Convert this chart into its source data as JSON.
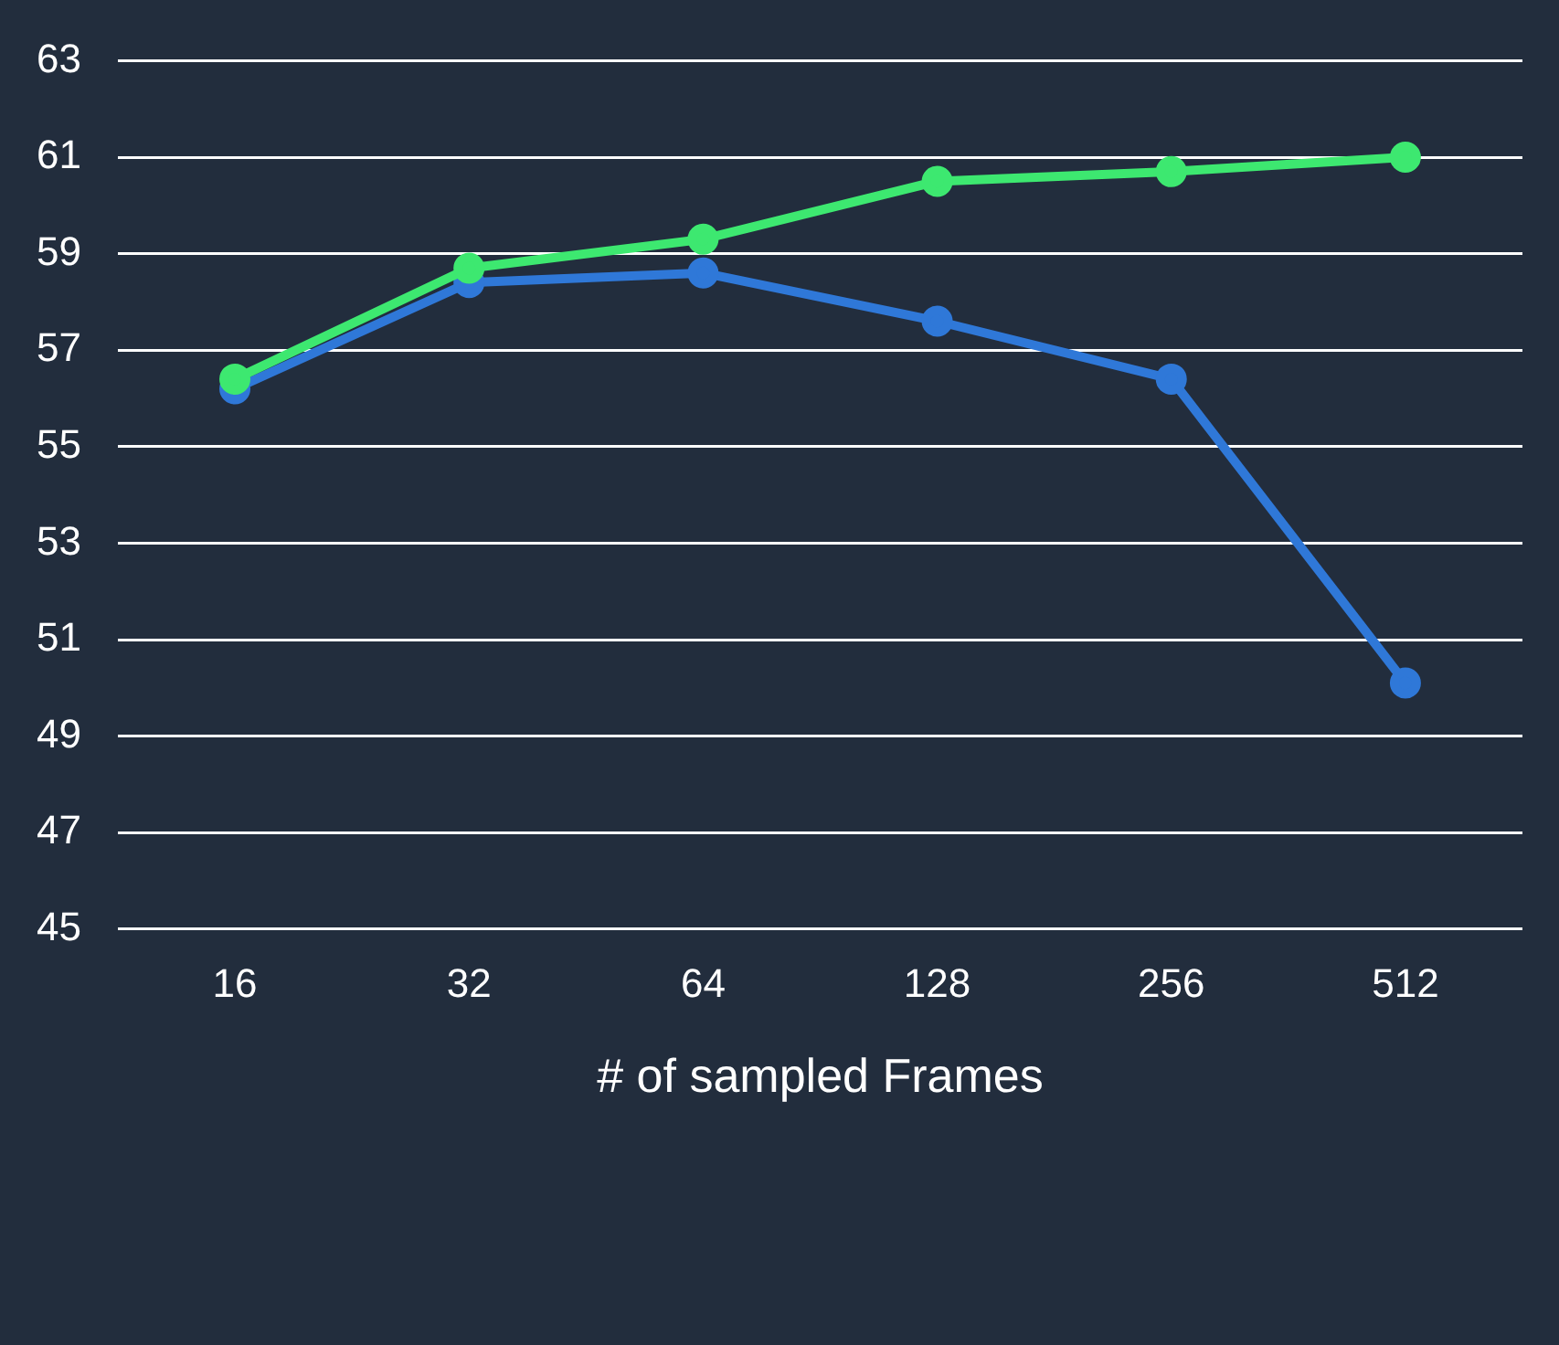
{
  "chart_data": {
    "type": "line",
    "xlabel": "# of sampled Frames",
    "categories": [
      "16",
      "32",
      "64",
      "128",
      "256",
      "512"
    ],
    "series": [
      {
        "color": "#2f78d8",
        "values": [
          56.2,
          58.4,
          58.6,
          57.6,
          56.4,
          50.1
        ]
      },
      {
        "color": "#3de870",
        "values": [
          56.4,
          58.7,
          59.3,
          60.5,
          60.7,
          61.0
        ]
      }
    ],
    "ylim": [
      45,
      63
    ],
    "yticks": [
      45,
      47,
      49,
      51,
      53,
      55,
      57,
      59,
      61,
      63
    ],
    "grid": "y",
    "marker": "circle",
    "line_style": "solid",
    "legend": false
  }
}
